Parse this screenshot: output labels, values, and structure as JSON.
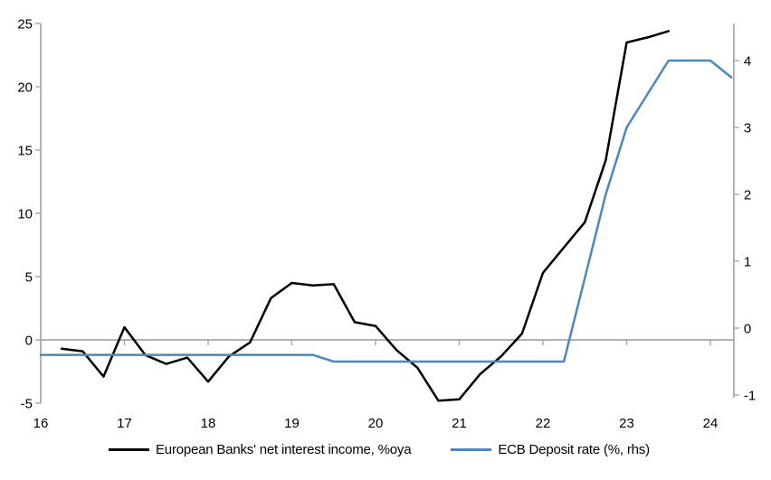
{
  "colors": {
    "nii_line": "#000000",
    "deposit_line": "#4f86be",
    "axis": "#a6a6a6",
    "background": "#ffffff",
    "text": "#000000"
  },
  "chart_data": {
    "type": "line",
    "title": "",
    "xlabel": "",
    "ylabel_left": "",
    "ylabel_right": "",
    "grid": false,
    "legend_position": "bottom",
    "x_axis": {
      "min": 16,
      "max": 24.28,
      "ticks": [
        16,
        17,
        18,
        19,
        20,
        21,
        22,
        23,
        24
      ]
    },
    "left_axis": {
      "min": -5,
      "max": 25,
      "ticks": [
        25,
        20,
        15,
        10,
        5,
        0,
        -5
      ]
    },
    "right_axis": {
      "min": -1,
      "max": 4,
      "ticks": [
        4,
        3,
        2,
        1,
        0,
        -1
      ]
    },
    "series": [
      {
        "name": "European Banks' net interest income, %oya",
        "axis": "left",
        "color": "#000000",
        "x": [
          16.25,
          16.5,
          16.75,
          17.0,
          17.25,
          17.5,
          17.75,
          18.0,
          18.25,
          18.5,
          18.75,
          19.0,
          19.25,
          19.5,
          19.75,
          20.0,
          20.25,
          20.5,
          20.75,
          21.0,
          21.25,
          21.5,
          21.75,
          22.0,
          22.25,
          22.5,
          22.75,
          23.0,
          23.25,
          23.5
        ],
        "values": [
          -0.7,
          -0.9,
          -2.9,
          1.0,
          -1.2,
          -1.9,
          -1.4,
          -3.3,
          -1.3,
          -0.2,
          3.3,
          4.5,
          4.3,
          4.4,
          1.4,
          1.1,
          -0.8,
          -2.2,
          -4.8,
          -4.7,
          -2.7,
          -1.3,
          0.5,
          5.3,
          7.3,
          9.3,
          14.2,
          23.5,
          23.9,
          24.4
        ]
      },
      {
        "name": "ECB Deposit rate (%, rhs)",
        "axis": "right",
        "color": "#4f86be",
        "x": [
          16.0,
          16.25,
          16.5,
          16.75,
          17.0,
          17.25,
          17.5,
          17.75,
          18.0,
          18.25,
          18.5,
          18.75,
          19.0,
          19.25,
          19.5,
          19.75,
          20.0,
          20.25,
          20.5,
          20.75,
          21.0,
          21.25,
          21.5,
          21.75,
          22.0,
          22.25,
          22.5,
          22.75,
          23.0,
          23.25,
          23.5,
          23.75,
          24.0,
          24.25
        ],
        "values": [
          -0.4,
          -0.4,
          -0.4,
          -0.4,
          -0.4,
          -0.4,
          -0.4,
          -0.4,
          -0.4,
          -0.4,
          -0.4,
          -0.4,
          -0.4,
          -0.4,
          -0.5,
          -0.5,
          -0.5,
          -0.5,
          -0.5,
          -0.5,
          -0.5,
          -0.5,
          -0.5,
          -0.5,
          -0.5,
          -0.5,
          0.75,
          2.0,
          3.0,
          3.5,
          4.0,
          4.0,
          4.0,
          3.75
        ]
      }
    ]
  }
}
